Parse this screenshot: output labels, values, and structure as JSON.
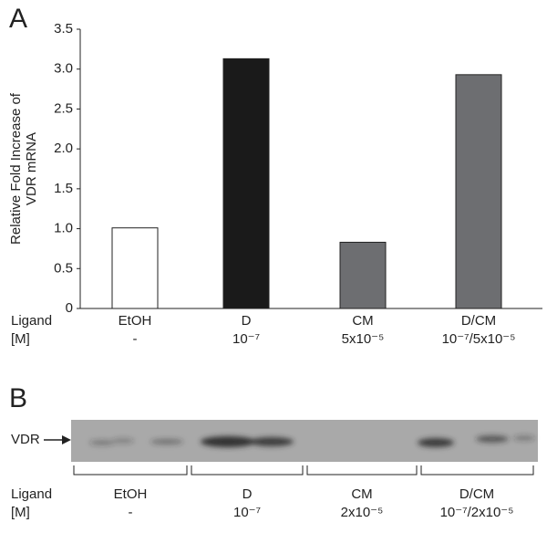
{
  "chart_data": {
    "type": "bar",
    "panel": "A",
    "ylabel": [
      "Relative Fold Increase of",
      "VDR mRNA"
    ],
    "row_labels": [
      "Ligand",
      "[M]"
    ],
    "categories": [
      "EtOH",
      "D",
      "CM",
      "D/CM"
    ],
    "concentrations": [
      "-",
      "10⁻⁷",
      "5x10⁻⁵",
      "10⁻⁷/5x10⁻⁵"
    ],
    "values": [
      1.01,
      3.13,
      0.83,
      2.93
    ],
    "colors": [
      "#ffffff",
      "#1a1a1a",
      "#6d6e71",
      "#6d6e71"
    ],
    "ylim": [
      0,
      3.5
    ],
    "yticks": [
      0,
      0.5,
      {
        "value": 1,
        "label": "1.0"
      },
      1.5,
      {
        "value": 2,
        "label": "2.0"
      },
      2.5,
      {
        "value": 3,
        "label": "3.0"
      },
      3.5
    ]
  },
  "blot": {
    "panel": "B",
    "band_label": "VDR",
    "row_labels": [
      "Ligand",
      "[M]"
    ],
    "categories": [
      "EtOH",
      "D",
      "CM",
      "D/CM"
    ],
    "concentrations": [
      "-",
      "10⁻⁷",
      "2x10⁻⁵",
      "10⁻⁷/2x10⁻⁵"
    ]
  }
}
